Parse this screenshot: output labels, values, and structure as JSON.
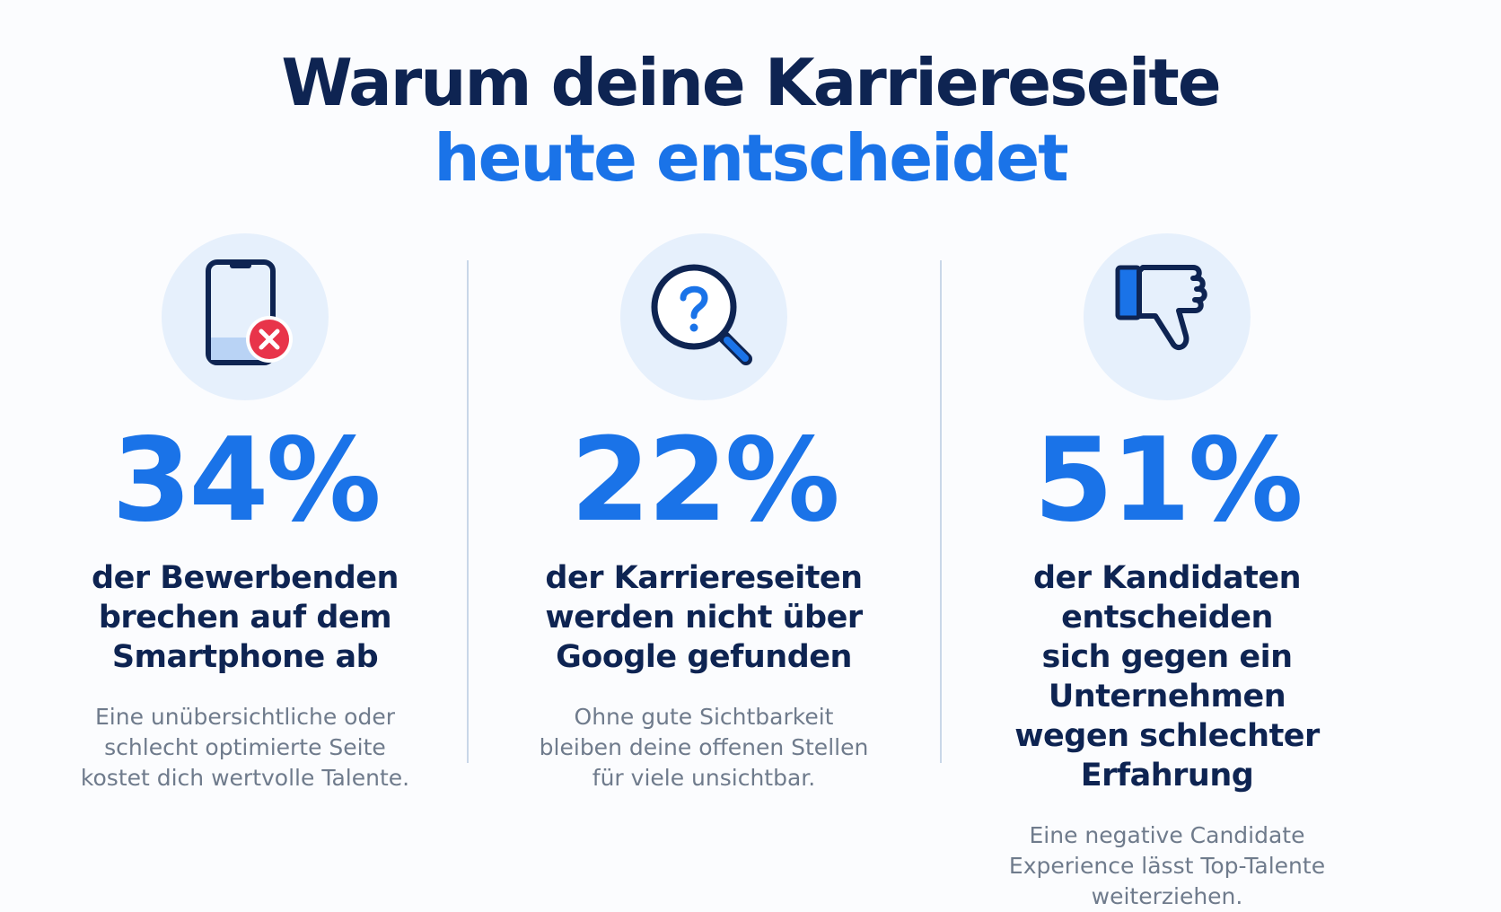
{
  "title": {
    "line1": "Warum deine Karriereseite",
    "line2": "heute entscheidet"
  },
  "colors": {
    "navy": "#0e2452",
    "blue": "#1a73e8",
    "circle_bg": "#e6f0fc",
    "gray_text": "#6f7b8c",
    "red": "#e8344a"
  },
  "columns": [
    {
      "icon": "smartphone-error-icon",
      "stat": "34%",
      "headline_lines": [
        "der Bewerbenden",
        "brechen auf dem",
        "Smartphone ab"
      ],
      "desc_lines": [
        "Eine unübersichtliche oder",
        "schlecht optimierte Seite",
        "kostet dich wertvolle Talente."
      ]
    },
    {
      "icon": "search-question-icon",
      "stat": "22%",
      "headline_lines": [
        "der Karriereseiten",
        "werden nicht über",
        "Google gefunden"
      ],
      "desc_lines": [
        "Ohne gute Sichtbarkeit",
        "bleiben deine offenen Stellen",
        "für viele unsichtbar."
      ]
    },
    {
      "icon": "thumbs-down-icon",
      "stat": "51%",
      "headline_lines": [
        "der Kandidaten entscheiden",
        "sich gegen ein Unternehmen",
        "wegen schlechter Erfahrung"
      ],
      "desc_lines": [
        "Eine negative Candidate",
        "Experience lässt Top-Talente",
        "weiterziehen."
      ]
    }
  ]
}
